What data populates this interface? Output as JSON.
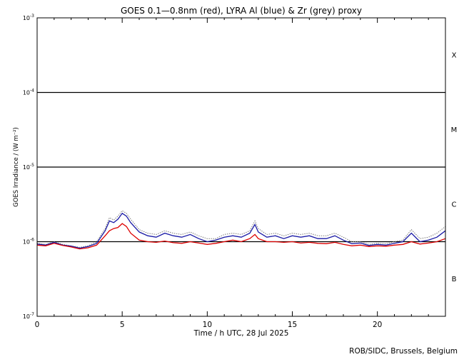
{
  "chart_data": {
    "type": "line",
    "title": "GOES 0.1—0.8nm (red), LYRA Al (blue) & Zr (grey) proxy",
    "xlabel": "Time / h UTC, 28 Jul 2025",
    "ylabel": "GOES Irradiance / (W m⁻²)",
    "xlim": [
      0,
      24
    ],
    "ylim": [
      1e-07,
      0.001
    ],
    "yscale": "log",
    "xticks": [
      {
        "v": 0,
        "label": "0"
      },
      {
        "v": 5,
        "label": "5"
      },
      {
        "v": 10,
        "label": "10"
      },
      {
        "v": 15,
        "label": "15"
      },
      {
        "v": 20,
        "label": "20"
      }
    ],
    "yticks": [
      {
        "v": 0.001,
        "base": "10",
        "exp": "-3"
      },
      {
        "v": 0.0001,
        "base": "10",
        "exp": "-4"
      },
      {
        "v": 1e-05,
        "base": "10",
        "exp": "-5"
      },
      {
        "v": 1e-06,
        "base": "10",
        "exp": "-6"
      },
      {
        "v": 1e-07,
        "base": "10",
        "exp": "-7"
      }
    ],
    "flare_class_lines": [
      0.0001,
      1e-05,
      1e-06
    ],
    "flare_class_labels": [
      {
        "label": "X",
        "v": 0.00032
      },
      {
        "label": "M",
        "v": 3.2e-05
      },
      {
        "label": "C",
        "v": 3.2e-06
      },
      {
        "label": "B",
        "v": 3.2e-07
      }
    ],
    "x": [
      0,
      0.5,
      1,
      1.5,
      2,
      2.5,
      3,
      3.5,
      4,
      4.25,
      4.5,
      4.75,
      5,
      5.25,
      5.5,
      6,
      6.5,
      7,
      7.5,
      8,
      8.5,
      9,
      9.5,
      10,
      10.5,
      11,
      11.5,
      12,
      12.5,
      12.8,
      13,
      13.5,
      14,
      14.5,
      15,
      15.5,
      16,
      16.5,
      17,
      17.5,
      18,
      18.5,
      19,
      19.5,
      20,
      20.5,
      21,
      21.5,
      22,
      22.5,
      23,
      23.5,
      24
    ],
    "series": [
      {
        "color": "#dd0000",
        "values": [
          9e-07,
          8.8e-07,
          9.5e-07,
          8.9e-07,
          8.5e-07,
          8e-07,
          8.3e-07,
          9e-07,
          1.2e-06,
          1.4e-06,
          1.5e-06,
          1.55e-06,
          1.75e-06,
          1.6e-06,
          1.3e-06,
          1.05e-06,
          1e-06,
          9.8e-07,
          1.02e-06,
          9.7e-07,
          9.5e-07,
          1e-06,
          9.6e-07,
          9.2e-07,
          9.5e-07,
          1e-06,
          1.05e-06,
          1e-06,
          1.1e-06,
          1.25e-06,
          1.1e-06,
          1e-06,
          1e-06,
          9.8e-07,
          1e-06,
          9.6e-07,
          9.8e-07,
          9.5e-07,
          9.4e-07,
          9.8e-07,
          9.2e-07,
          8.8e-07,
          9e-07,
          8.6e-07,
          8.8e-07,
          8.7e-07,
          9e-07,
          9.2e-07,
          1e-06,
          9.3e-07,
          9.6e-07,
          1e-06,
          1.1e-06
        ]
      },
      {
        "color": "#1a1aa6",
        "values": [
          9.3e-07,
          9e-07,
          9.8e-07,
          9e-07,
          8.7e-07,
          8.2e-07,
          8.6e-07,
          9.5e-07,
          1.4e-06,
          1.9e-06,
          1.8e-06,
          2e-06,
          2.4e-06,
          2.2e-06,
          1.8e-06,
          1.35e-06,
          1.2e-06,
          1.15e-06,
          1.3e-06,
          1.2e-06,
          1.15e-06,
          1.25e-06,
          1.1e-06,
          1e-06,
          1.05e-06,
          1.15e-06,
          1.2e-06,
          1.15e-06,
          1.3e-06,
          1.7e-06,
          1.35e-06,
          1.15e-06,
          1.2e-06,
          1.1e-06,
          1.2e-06,
          1.15e-06,
          1.2e-06,
          1.1e-06,
          1.1e-06,
          1.2e-06,
          1.05e-06,
          9.4e-07,
          9.6e-07,
          8.9e-07,
          9.2e-07,
          9e-07,
          9.5e-07,
          1e-06,
          1.3e-06,
          1e-06,
          1.05e-06,
          1.15e-06,
          1.4e-06
        ]
      },
      {
        "color": "#7a7a7a",
        "values": [
          9.5e-07,
          9.2e-07,
          1e-06,
          9.2e-07,
          8.8e-07,
          8.4e-07,
          8.8e-07,
          1e-06,
          1.5e-06,
          2.1e-06,
          1.95e-06,
          2.2e-06,
          2.6e-06,
          2.4e-06,
          2e-06,
          1.45e-06,
          1.3e-06,
          1.25e-06,
          1.4e-06,
          1.3e-06,
          1.25e-06,
          1.35e-06,
          1.2e-06,
          1.1e-06,
          1.1e-06,
          1.25e-06,
          1.3e-06,
          1.25e-06,
          1.4e-06,
          1.9e-06,
          1.5e-06,
          1.25e-06,
          1.3e-06,
          1.2e-06,
          1.3e-06,
          1.25e-06,
          1.3e-06,
          1.2e-06,
          1.2e-06,
          1.3e-06,
          1.15e-06,
          1e-06,
          1e-06,
          9.2e-07,
          9.5e-07,
          9.4e-07,
          1e-06,
          1.05e-06,
          1.45e-06,
          1.1e-06,
          1.15e-06,
          1.3e-06,
          1.6e-06
        ]
      }
    ],
    "credit": "ROB/SIDC, Brussels, Belgium"
  }
}
